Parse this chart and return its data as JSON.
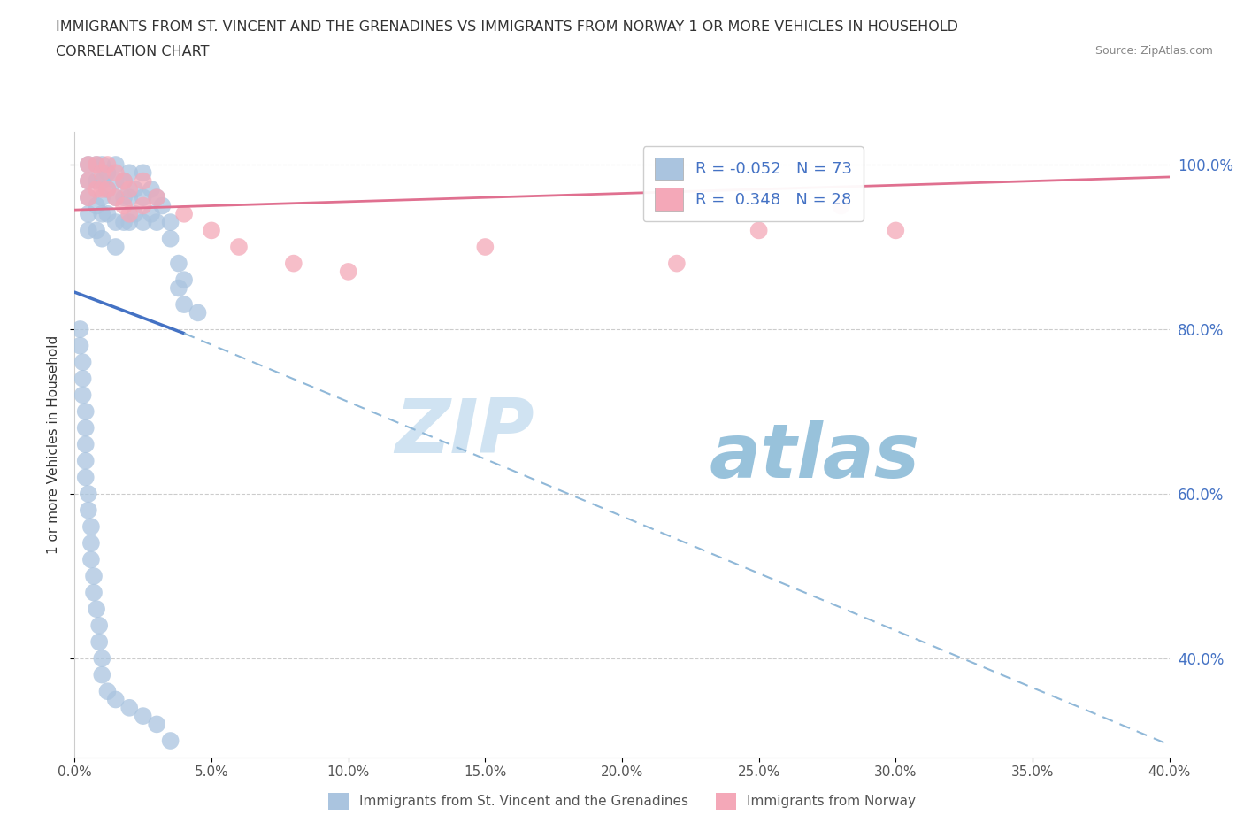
{
  "title": "IMMIGRANTS FROM ST. VINCENT AND THE GRENADINES VS IMMIGRANTS FROM NORWAY 1 OR MORE VEHICLES IN HOUSEHOLD",
  "subtitle": "CORRELATION CHART",
  "source": "Source: ZipAtlas.com",
  "ylabel": "1 or more Vehicles in Household",
  "legend_label_blue": "Immigrants from St. Vincent and the Grenadines",
  "legend_label_pink": "Immigrants from Norway",
  "R_blue": -0.052,
  "N_blue": 73,
  "R_pink": 0.348,
  "N_pink": 28,
  "xlim": [
    0.0,
    0.4
  ],
  "ylim": [
    0.28,
    1.04
  ],
  "xticks": [
    0.0,
    0.05,
    0.1,
    0.15,
    0.2,
    0.25,
    0.3,
    0.35,
    0.4
  ],
  "yticks": [
    0.4,
    0.6,
    0.8,
    1.0
  ],
  "color_blue": "#aac4df",
  "color_blue_line": "#4472c4",
  "color_pink": "#f4a8b8",
  "color_pink_line": "#e07090",
  "color_dashed": "#90b8d8",
  "watermark_zip": "ZIP",
  "watermark_atlas": "atlas",
  "blue_scatter_x": [
    0.005,
    0.005,
    0.005,
    0.005,
    0.005,
    0.008,
    0.008,
    0.008,
    0.008,
    0.01,
    0.01,
    0.01,
    0.01,
    0.01,
    0.012,
    0.012,
    0.012,
    0.015,
    0.015,
    0.015,
    0.015,
    0.015,
    0.018,
    0.018,
    0.018,
    0.02,
    0.02,
    0.02,
    0.022,
    0.022,
    0.025,
    0.025,
    0.025,
    0.028,
    0.028,
    0.03,
    0.03,
    0.032,
    0.035,
    0.035,
    0.038,
    0.038,
    0.04,
    0.04,
    0.045,
    0.002,
    0.002,
    0.003,
    0.003,
    0.003,
    0.004,
    0.004,
    0.004,
    0.004,
    0.004,
    0.005,
    0.005,
    0.006,
    0.006,
    0.006,
    0.007,
    0.007,
    0.008,
    0.009,
    0.009,
    0.01,
    0.01,
    0.012,
    0.015,
    0.02,
    0.025,
    0.03,
    0.035
  ],
  "blue_scatter_y": [
    1.0,
    0.98,
    0.96,
    0.94,
    0.92,
    1.0,
    0.98,
    0.95,
    0.92,
    1.0,
    0.98,
    0.96,
    0.94,
    0.91,
    0.99,
    0.97,
    0.94,
    1.0,
    0.98,
    0.96,
    0.93,
    0.9,
    0.98,
    0.96,
    0.93,
    0.99,
    0.96,
    0.93,
    0.97,
    0.94,
    0.99,
    0.96,
    0.93,
    0.97,
    0.94,
    0.96,
    0.93,
    0.95,
    0.93,
    0.91,
    0.88,
    0.85,
    0.86,
    0.83,
    0.82,
    0.8,
    0.78,
    0.76,
    0.74,
    0.72,
    0.7,
    0.68,
    0.66,
    0.64,
    0.62,
    0.6,
    0.58,
    0.56,
    0.54,
    0.52,
    0.5,
    0.48,
    0.46,
    0.44,
    0.42,
    0.4,
    0.38,
    0.36,
    0.35,
    0.34,
    0.33,
    0.32,
    0.3
  ],
  "pink_scatter_x": [
    0.005,
    0.005,
    0.005,
    0.008,
    0.008,
    0.01,
    0.01,
    0.012,
    0.012,
    0.015,
    0.015,
    0.018,
    0.018,
    0.02,
    0.02,
    0.025,
    0.025,
    0.03,
    0.04,
    0.05,
    0.06,
    0.08,
    0.1,
    0.15,
    0.22,
    0.25,
    0.28,
    0.3
  ],
  "pink_scatter_y": [
    1.0,
    0.98,
    0.96,
    1.0,
    0.97,
    0.99,
    0.97,
    1.0,
    0.97,
    0.99,
    0.96,
    0.98,
    0.95,
    0.97,
    0.94,
    0.98,
    0.95,
    0.96,
    0.94,
    0.92,
    0.9,
    0.88,
    0.87,
    0.9,
    0.88,
    0.92,
    0.95,
    0.92
  ],
  "blue_line_x0": 0.0,
  "blue_line_y0": 0.845,
  "blue_line_x1_solid": 0.04,
  "blue_line_y1_solid": 0.795,
  "blue_line_x1_dash": 0.4,
  "blue_line_y1_dash": 0.295,
  "pink_line_x0": 0.0,
  "pink_line_y0": 0.945,
  "pink_line_x1": 0.4,
  "pink_line_y1": 0.985
}
